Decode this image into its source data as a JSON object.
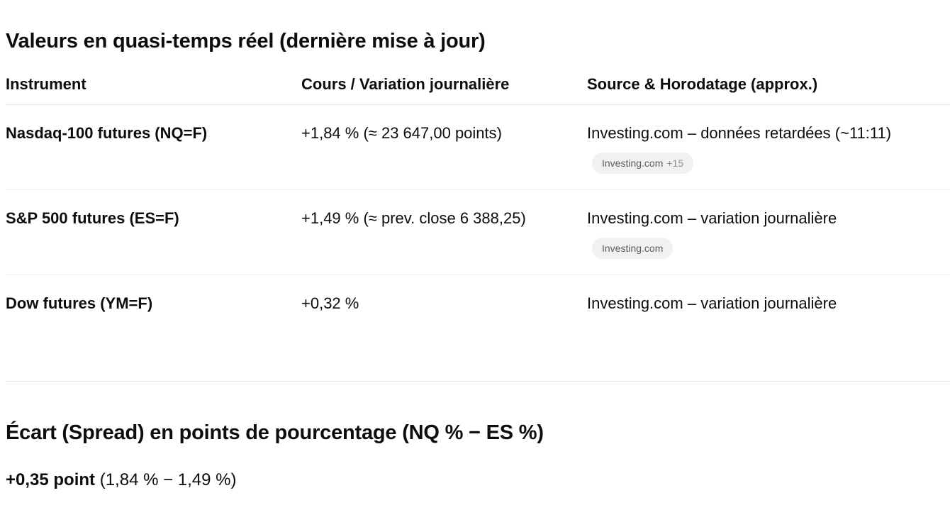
{
  "section1": {
    "title": "Valeurs en quasi-temps réel (dernière mise à jour)"
  },
  "table": {
    "headers": [
      "Instrument",
      "Cours / Variation journalière",
      "Source & Horodatage (approx.)"
    ],
    "rows": [
      {
        "instrument": "Nasdaq-100 futures (NQ=F)",
        "value": "+1,84 % (≈ 23 647,00 points)",
        "source": "Investing.com – données retardées (~11:11)",
        "chip": {
          "label": "Investing.com",
          "more": "+15"
        }
      },
      {
        "instrument": "S&P 500 futures (ES=F)",
        "value": "+1,49 % (≈ prev. close 6 388,25)",
        "source": "Investing.com – variation journalière",
        "chip": {
          "label": "Investing.com",
          "more": ""
        }
      },
      {
        "instrument": "Dow futures (YM=F)",
        "value": "+0,32 %",
        "source": "Investing.com – variation journalière"
      }
    ]
  },
  "section2": {
    "title": "Écart (Spread) en points de pourcentage (NQ % − ES %)",
    "result_bold": "+0,35 point",
    "result_detail": " (1,84 % − 1,49 %)"
  }
}
